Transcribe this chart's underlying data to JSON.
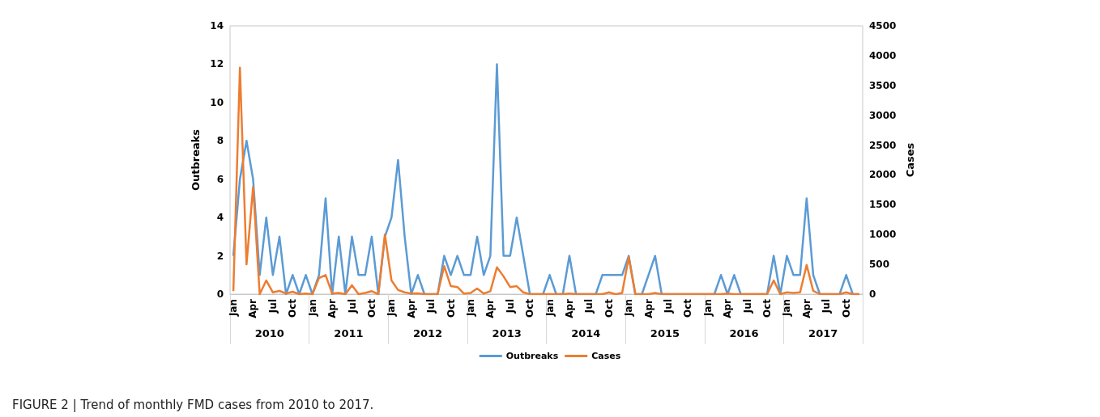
{
  "chart_data": {
    "type": "line",
    "title": "FIGURE 2 | Trend of monthly FMD cases from 2010 to 2017.",
    "ylabel": "Outbreaks",
    "y2label": "Cases",
    "categories": [
      "Jan",
      null,
      null,
      "Apr",
      null,
      null,
      "Jul",
      null,
      null,
      "Oct",
      null,
      null,
      "Jan",
      null,
      null,
      "Apr",
      null,
      null,
      "Jul",
      null,
      null,
      "Oct",
      null,
      null,
      "Jan",
      null,
      null,
      "Apr",
      null,
      null,
      "Jul",
      null,
      null,
      "Oct",
      null,
      null,
      "Jan",
      null,
      null,
      "Apr",
      null,
      null,
      "Jul",
      null,
      null,
      "Oct",
      null,
      null,
      "Jan",
      null,
      null,
      "Apr",
      null,
      null,
      "Jul",
      null,
      null,
      "Oct",
      null,
      null,
      "Jan",
      null,
      null,
      "Apr",
      null,
      null,
      "Jul",
      null,
      null,
      "Oct",
      null,
      null,
      "Jan",
      null,
      null,
      "Apr",
      null,
      null,
      "Jul",
      null,
      null,
      "Oct",
      null,
      null,
      "Jan",
      null,
      null,
      "Apr",
      null,
      null,
      "Jul",
      null,
      null,
      "Oct",
      null,
      null
    ],
    "annotations": [
      "2010",
      "2011",
      "2012",
      "2013",
      "2014",
      "2015",
      "2016",
      "2017"
    ],
    "series": [
      {
        "name": "Outbreaks",
        "color": "#5b9bd5",
        "values": [
          2,
          6,
          8,
          6,
          1,
          4,
          1,
          3,
          0,
          1,
          0,
          1,
          0,
          1,
          5,
          0,
          3,
          0,
          3,
          1,
          1,
          3,
          0,
          3,
          4,
          7,
          3,
          0,
          1,
          0,
          0,
          0,
          2,
          1,
          2,
          1,
          1,
          3,
          1,
          2,
          12,
          2,
          2,
          4,
          2,
          0,
          0,
          0,
          1,
          0,
          0,
          2,
          0,
          0,
          0,
          0,
          1,
          1,
          1,
          1,
          2,
          0,
          0,
          1,
          2,
          0,
          0,
          0,
          0,
          0,
          0,
          0,
          0,
          0,
          1,
          0,
          1,
          0,
          0,
          0,
          0,
          0,
          2,
          0,
          2,
          1,
          1,
          5,
          1,
          0,
          0,
          0,
          0,
          1,
          0,
          0
        ]
      },
      {
        "name": "Cases",
        "color": "#ed7d31",
        "axis": "y2",
        "values": [
          50,
          3800,
          500,
          1800,
          0,
          230,
          30,
          55,
          10,
          40,
          0,
          10,
          0,
          270,
          320,
          10,
          20,
          0,
          150,
          0,
          20,
          50,
          0,
          1000,
          230,
          70,
          30,
          10,
          15,
          0,
          0,
          0,
          470,
          135,
          120,
          10,
          20,
          95,
          10,
          50,
          450,
          300,
          120,
          135,
          30,
          0,
          0,
          0,
          0,
          0,
          0,
          10,
          0,
          0,
          0,
          0,
          0,
          30,
          0,
          20,
          620,
          0,
          0,
          0,
          20,
          0,
          0,
          0,
          0,
          0,
          0,
          0,
          0,
          0,
          0,
          10,
          0,
          0,
          0,
          0,
          0,
          0,
          230,
          0,
          30,
          20,
          30,
          490,
          55,
          0,
          0,
          0,
          0,
          30,
          0,
          0
        ]
      }
    ],
    "ylim": [
      0,
      14
    ],
    "yticks": [
      0,
      2,
      4,
      6,
      8,
      10,
      12,
      14
    ],
    "y2lim": [
      0,
      4500
    ],
    "y2ticks": [
      0,
      500,
      1000,
      1500,
      2000,
      2500,
      3000,
      3500,
      4000,
      4500
    ],
    "legend": "bottom"
  }
}
